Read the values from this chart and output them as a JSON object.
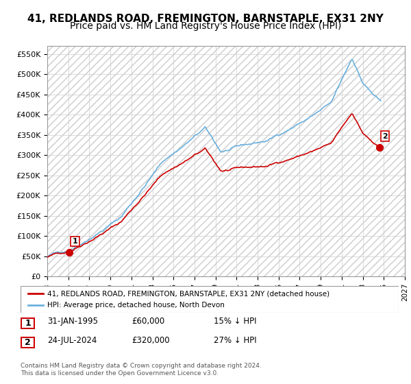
{
  "title": "41, REDLANDS ROAD, FREMINGTON, BARNSTAPLE, EX31 2NY",
  "subtitle": "Price paid vs. HM Land Registry's House Price Index (HPI)",
  "ylabel_ticks": [
    "£0",
    "£50K",
    "£100K",
    "£150K",
    "£200K",
    "£250K",
    "£300K",
    "£350K",
    "£400K",
    "£450K",
    "£500K",
    "£550K"
  ],
  "ytick_vals": [
    0,
    50000,
    100000,
    150000,
    200000,
    250000,
    300000,
    350000,
    400000,
    450000,
    500000,
    550000
  ],
  "ylim": [
    0,
    570000
  ],
  "xlim_start": 1993,
  "xlim_end": 2027,
  "sale1_date": 1995.08,
  "sale1_price": 60000,
  "sale1_label": "1",
  "sale2_date": 2024.56,
  "sale2_price": 320000,
  "sale2_label": "2",
  "hpi_color": "#6ab0de",
  "price_color": "#cc0000",
  "point_color": "#cc0000",
  "legend_line1": "41, REDLANDS ROAD, FREMINGTON, BARNSTAPLE, EX31 2NY (detached house)",
  "legend_line2": "HPI: Average price, detached house, North Devon",
  "table_row1": [
    "1",
    "31-JAN-1995",
    "£60,000",
    "15% ↓ HPI"
  ],
  "table_row2": [
    "2",
    "24-JUL-2024",
    "£320,000",
    "27% ↓ HPI"
  ],
  "footnote": "Contains HM Land Registry data © Crown copyright and database right 2024.\nThis data is licensed under the Open Government Licence v3.0.",
  "background_hatch_color": "#e8e8e8",
  "grid_color": "#cccccc",
  "title_fontsize": 11,
  "subtitle_fontsize": 10
}
